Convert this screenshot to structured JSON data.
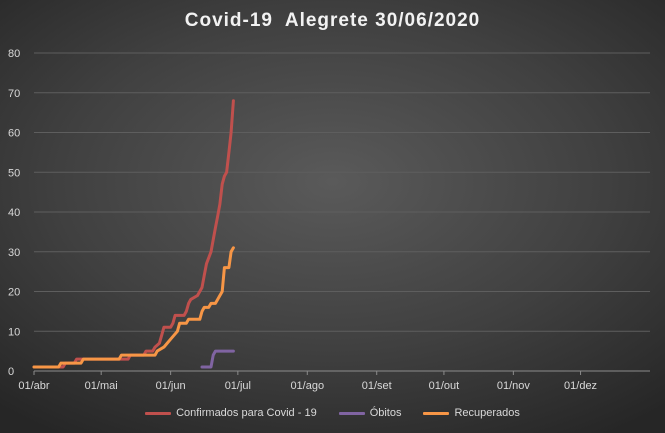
{
  "chart_data": {
    "type": "line",
    "title": "Covid-19  Alegrete 30/06/2020",
    "xlabel": "",
    "ylabel": "",
    "ylim": [
      0,
      80
    ],
    "yticks": [
      0,
      10,
      20,
      30,
      40,
      50,
      60,
      70,
      80
    ],
    "xlim": [
      "2020-04-01",
      "2021-01-01"
    ],
    "xticks": [
      {
        "date": "2020-04-01",
        "label": "01/abr"
      },
      {
        "date": "2020-05-01",
        "label": "01/mai"
      },
      {
        "date": "2020-06-01",
        "label": "01/jun"
      },
      {
        "date": "2020-07-01",
        "label": "01/jul"
      },
      {
        "date": "2020-08-01",
        "label": "01/ago"
      },
      {
        "date": "2020-09-01",
        "label": "01/set"
      },
      {
        "date": "2020-10-01",
        "label": "01/out"
      },
      {
        "date": "2020-11-01",
        "label": "01/nov"
      },
      {
        "date": "2020-12-01",
        "label": "01/dez"
      }
    ],
    "grid": true,
    "legend_position": "bottom",
    "series": [
      {
        "name": "Confirmados para Covid - 19",
        "color": "#c0504d",
        "points": [
          [
            "2020-04-01",
            1
          ],
          [
            "2020-04-14",
            1
          ],
          [
            "2020-04-15",
            2
          ],
          [
            "2020-04-19",
            2
          ],
          [
            "2020-04-20",
            3
          ],
          [
            "2020-05-13",
            3
          ],
          [
            "2020-05-14",
            4
          ],
          [
            "2020-05-20",
            4
          ],
          [
            "2020-05-21",
            5
          ],
          [
            "2020-05-24",
            5
          ],
          [
            "2020-05-25",
            6
          ],
          [
            "2020-05-27",
            7
          ],
          [
            "2020-05-28",
            9
          ],
          [
            "2020-05-29",
            11
          ],
          [
            "2020-06-01",
            11
          ],
          [
            "2020-06-02",
            12
          ],
          [
            "2020-06-03",
            14
          ],
          [
            "2020-06-07",
            14
          ],
          [
            "2020-06-08",
            15
          ],
          [
            "2020-06-09",
            17
          ],
          [
            "2020-06-10",
            18
          ],
          [
            "2020-06-13",
            19
          ],
          [
            "2020-06-15",
            21
          ],
          [
            "2020-06-16",
            24
          ],
          [
            "2020-06-17",
            27
          ],
          [
            "2020-06-19",
            30
          ],
          [
            "2020-06-20",
            33
          ],
          [
            "2020-06-21",
            36
          ],
          [
            "2020-06-22",
            39
          ],
          [
            "2020-06-23",
            42
          ],
          [
            "2020-06-24",
            47
          ],
          [
            "2020-06-25",
            49
          ],
          [
            "2020-06-26",
            50
          ],
          [
            "2020-06-27",
            55
          ],
          [
            "2020-06-28",
            60
          ],
          [
            "2020-06-29",
            68
          ]
        ]
      },
      {
        "name": "Óbitos",
        "color": "#8064a2",
        "points": [
          [
            "2020-06-15",
            1
          ],
          [
            "2020-06-19",
            1
          ],
          [
            "2020-06-20",
            4
          ],
          [
            "2020-06-21",
            5
          ],
          [
            "2020-06-29",
            5
          ]
        ]
      },
      {
        "name": "Recuperados",
        "color": "#f79646",
        "points": [
          [
            "2020-04-01",
            1
          ],
          [
            "2020-04-12",
            1
          ],
          [
            "2020-04-13",
            2
          ],
          [
            "2020-04-22",
            2
          ],
          [
            "2020-04-23",
            3
          ],
          [
            "2020-05-09",
            3
          ],
          [
            "2020-05-10",
            4
          ],
          [
            "2020-05-25",
            4
          ],
          [
            "2020-05-26",
            5
          ],
          [
            "2020-05-29",
            6
          ],
          [
            "2020-06-01",
            8
          ],
          [
            "2020-06-04",
            10
          ],
          [
            "2020-06-05",
            12
          ],
          [
            "2020-06-08",
            12
          ],
          [
            "2020-06-09",
            13
          ],
          [
            "2020-06-14",
            13
          ],
          [
            "2020-06-15",
            15
          ],
          [
            "2020-06-16",
            16
          ],
          [
            "2020-06-18",
            16
          ],
          [
            "2020-06-19",
            17
          ],
          [
            "2020-06-21",
            17
          ],
          [
            "2020-06-22",
            18
          ],
          [
            "2020-06-23",
            19
          ],
          [
            "2020-06-24",
            20
          ],
          [
            "2020-06-25",
            26
          ],
          [
            "2020-06-27",
            26
          ],
          [
            "2020-06-28",
            30
          ],
          [
            "2020-06-29",
            31
          ]
        ]
      }
    ]
  }
}
